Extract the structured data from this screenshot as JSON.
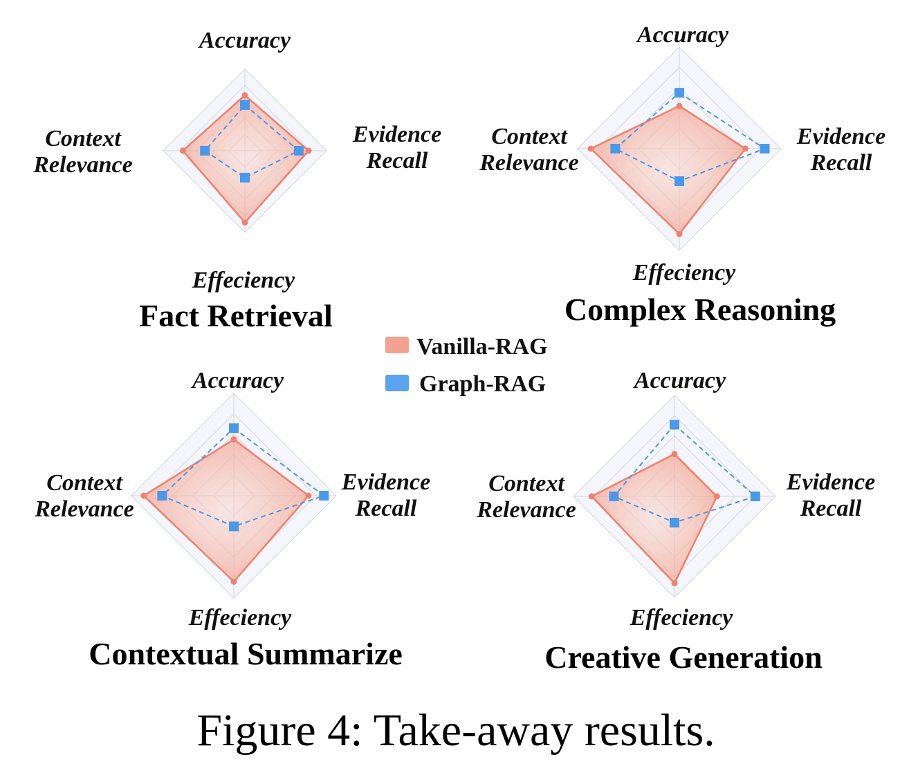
{
  "caption": "Figure 4: Take-away results.",
  "legend": [
    {
      "label": "Vanilla-RAG",
      "color": "#f2a291"
    },
    {
      "label": "Graph-RAG",
      "color": "#5aa3ee"
    }
  ],
  "colors": {
    "vanilla_line": "#ee8270",
    "vanilla_fill": "#f6b3a5",
    "graph_line": "#4a98e8",
    "graph_marker": "#4a98e8",
    "grid": "#d9dbe2",
    "grid_fill": "#eef0f8"
  },
  "chart_data": [
    {
      "type": "radar",
      "title": "Fact Retrieval",
      "axes": [
        "Accuracy",
        "Evidence Recall",
        "Efficiency",
        "Context Relevance"
      ],
      "axis_labels": [
        [
          "Accuracy"
        ],
        [
          "Evidence",
          "Recall"
        ],
        [
          "Effeciency"
        ],
        [
          "Context",
          "Relevance"
        ]
      ],
      "range": [
        0,
        1
      ],
      "series": [
        {
          "name": "Vanilla-RAG",
          "values": [
            0.68,
            0.78,
            0.88,
            0.76
          ]
        },
        {
          "name": "Graph-RAG",
          "values": [
            0.56,
            0.66,
            0.33,
            0.49
          ]
        }
      ]
    },
    {
      "type": "radar",
      "title": "Complex Reasoning",
      "axes": [
        "Accuracy",
        "Evidence Recall",
        "Efficiency",
        "Context Relevance"
      ],
      "axis_labels": [
        [
          "Accuracy"
        ],
        [
          "Evidence",
          "Recall"
        ],
        [
          "Effeciency"
        ],
        [
          "Context",
          "Relevance"
        ]
      ],
      "range": [
        0,
        1
      ],
      "series": [
        {
          "name": "Vanilla-RAG",
          "values": [
            0.42,
            0.65,
            0.84,
            0.87
          ]
        },
        {
          "name": "Graph-RAG",
          "values": [
            0.55,
            0.84,
            0.32,
            0.63
          ]
        }
      ]
    },
    {
      "type": "radar",
      "title": "Contextual Summarize",
      "axes": [
        "Accuracy",
        "Evidence Recall",
        "Efficiency",
        "Context Relevance"
      ],
      "axis_labels": [
        [
          "Accuracy"
        ],
        [
          "Evidence",
          "Recall"
        ],
        [
          "Effeciency"
        ],
        [
          "Context",
          "Relevance"
        ]
      ],
      "range": [
        0,
        1
      ],
      "series": [
        {
          "name": "Vanilla-RAG",
          "values": [
            0.55,
            0.73,
            0.84,
            0.88
          ]
        },
        {
          "name": "Graph-RAG",
          "values": [
            0.66,
            0.88,
            0.3,
            0.7
          ]
        }
      ]
    },
    {
      "type": "radar",
      "title": "Creative Generation",
      "axes": [
        "Accuracy",
        "Evidence Recall",
        "Efficiency",
        "Context Relevance"
      ],
      "axis_labels": [
        [
          "Accuracy"
        ],
        [
          "Evidence",
          "Recall"
        ],
        [
          "Effeciency"
        ],
        [
          "Context",
          "Relevance"
        ]
      ],
      "range": [
        0,
        1
      ],
      "series": [
        {
          "name": "Vanilla-RAG",
          "values": [
            0.42,
            0.42,
            0.86,
            0.82
          ]
        },
        {
          "name": "Graph-RAG",
          "values": [
            0.71,
            0.8,
            0.26,
            0.6
          ]
        }
      ]
    }
  ]
}
